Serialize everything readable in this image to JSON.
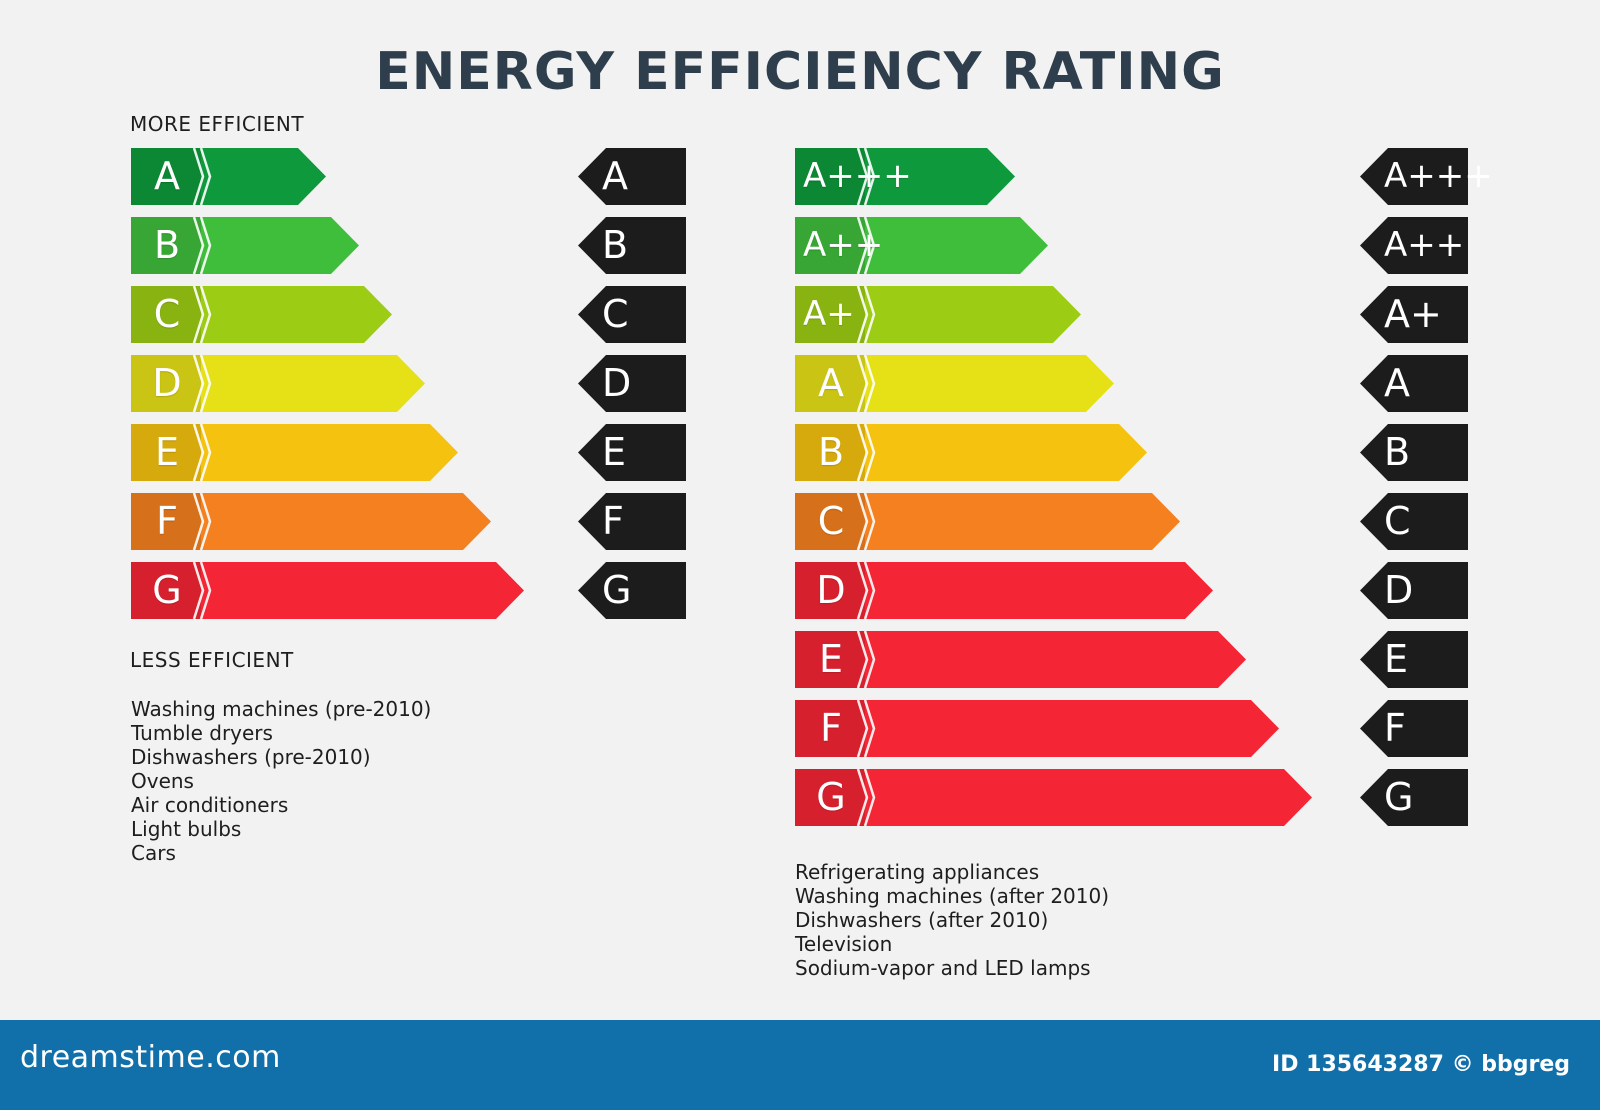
{
  "title": "ENERGY EFFICIENCY RATING",
  "left": {
    "top_caption": "MORE EFFICIENT",
    "bottom_caption": "LESS EFFICIENT",
    "ratings": [
      {
        "label": "A",
        "color": "#0e9a3c"
      },
      {
        "label": "B",
        "color": "#3fbe3c"
      },
      {
        "label": "C",
        "color": "#9ccc14"
      },
      {
        "label": "D",
        "color": "#e6e017"
      },
      {
        "label": "E",
        "color": "#f4c20f"
      },
      {
        "label": "F",
        "color": "#f5801f"
      },
      {
        "label": "G",
        "color": "#f42535"
      }
    ],
    "tags": [
      "A",
      "B",
      "C",
      "D",
      "E",
      "F",
      "G"
    ],
    "applications": [
      "Washing machines (pre-2010)",
      "Tumble dryers",
      "Dishwashers (pre-2010)",
      "Ovens",
      "Air conditioners",
      "Light bulbs",
      "Cars"
    ]
  },
  "right": {
    "ratings": [
      {
        "label": "A+++",
        "color": "#0e9a3c"
      },
      {
        "label": "A++",
        "color": "#3fbe3c"
      },
      {
        "label": "A+",
        "color": "#9ccc14"
      },
      {
        "label": "A",
        "color": "#e6e017"
      },
      {
        "label": "B",
        "color": "#f4c20f"
      },
      {
        "label": "C",
        "color": "#f5801f"
      },
      {
        "label": "D",
        "color": "#f42535"
      },
      {
        "label": "E",
        "color": "#f42535"
      },
      {
        "label": "F",
        "color": "#f42535"
      },
      {
        "label": "G",
        "color": "#f42535"
      }
    ],
    "tags": [
      "A+++",
      "A++",
      "A+",
      "A",
      "B",
      "C",
      "D",
      "E",
      "F",
      "G"
    ],
    "applications": [
      "Refrigerating appliances",
      "Washing machines (after 2010)",
      "Dishwashers (after 2010)",
      "Television",
      "Sodium-vapor and LED lamps"
    ]
  },
  "footer": {
    "brand": "dreamstime.com",
    "credit": "ID 135643287 © bbgreg"
  }
}
